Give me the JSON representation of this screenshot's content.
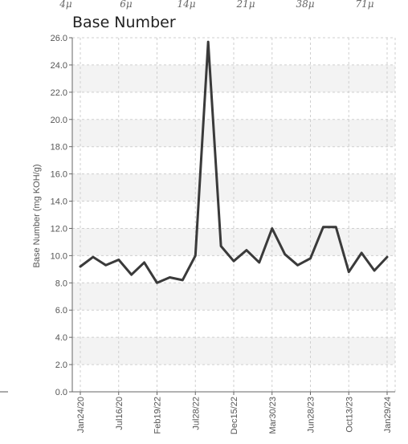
{
  "chart_data": {
    "type": "line",
    "title": "Base Number",
    "ylabel": "Base Number (mg KOH/g)",
    "ylim": [
      0,
      26
    ],
    "yticks": [
      "0.0",
      "2.0",
      "4.0",
      "6.0",
      "8.0",
      "10.0",
      "12.0",
      "14.0",
      "16.0",
      "18.0",
      "20.0",
      "22.0",
      "24.0",
      "26.0"
    ],
    "x_tick_labels": [
      "Jan24/20",
      "Jul16/20",
      "Feb19/22",
      "Jul28/22",
      "Dec15/22",
      "Mar30/23",
      "Jun28/23",
      "Oct13/23",
      "Jan29/24"
    ],
    "top_labels": [
      "4μ",
      "6μ",
      "14μ",
      "21μ",
      "38μ",
      "71μ"
    ],
    "grid": true,
    "series": [
      {
        "color": "#3a3a3a",
        "values": [
          9.2,
          9.9,
          9.3,
          9.7,
          8.6,
          9.5,
          8.0,
          8.4,
          8.2,
          10.0,
          25.7,
          10.7,
          9.6,
          10.4,
          9.5,
          12.0,
          10.1,
          9.3,
          9.8,
          12.1,
          12.1,
          8.8,
          10.2,
          8.9,
          9.9
        ]
      }
    ]
  },
  "colors": {
    "line": "#3a3a3a",
    "band": "#f3f3f3",
    "grid": "#cfcfcf",
    "axis": "#666666"
  }
}
